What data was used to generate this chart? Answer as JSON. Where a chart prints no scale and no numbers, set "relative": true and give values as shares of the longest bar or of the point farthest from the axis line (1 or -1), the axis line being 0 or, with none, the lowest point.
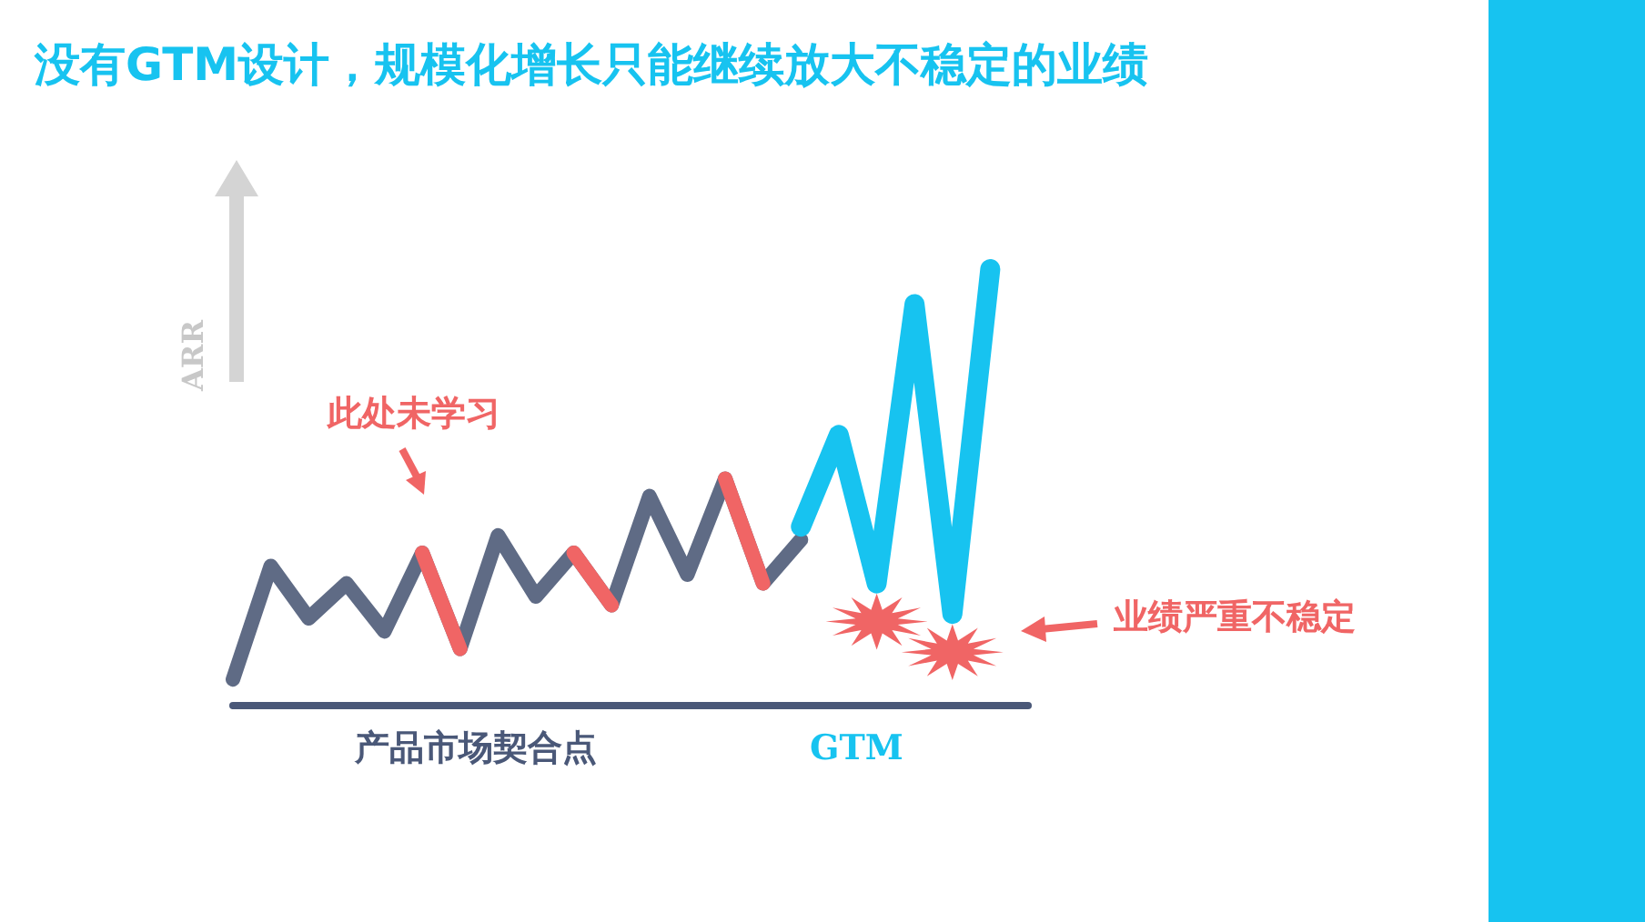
{
  "chart_data": {
    "type": "line",
    "title": "没有GTM设计，规模化增长只能继续放大不稳定的业绩",
    "ylabel": "ARR",
    "relative": true,
    "grid": false,
    "marker": "none",
    "line_style": "solid",
    "categories": [
      null,
      null,
      null,
      null,
      null,
      null,
      null,
      null,
      null,
      null,
      null,
      null,
      null,
      null,
      null,
      null,
      null,
      null,
      null,
      null,
      null,
      null
    ],
    "series": [
      {
        "color": "#5f6b85",
        "values": [
          0.06,
          0.32,
          0.2,
          0.28,
          0.17,
          0.35,
          0.13,
          0.39,
          0.25,
          0.35,
          0.23,
          0.48,
          0.3,
          0.52,
          0.28,
          0.38,
          null,
          null,
          null,
          null,
          null,
          null
        ]
      },
      {
        "color": "#f06565",
        "values": [
          null,
          null,
          null,
          null,
          null,
          0.35,
          0.13,
          null,
          null,
          0.35,
          0.23,
          null,
          null,
          0.52,
          0.28,
          null,
          null,
          null,
          null,
          null,
          null,
          null
        ]
      },
      {
        "color": "#17c3f0",
        "values": [
          null,
          null,
          null,
          null,
          null,
          null,
          null,
          null,
          null,
          null,
          null,
          null,
          null,
          null,
          null,
          0.41,
          0.62,
          0.28,
          0.92,
          0.21,
          1.0,
          null
        ]
      }
    ],
    "annotations": [
      "此处未学习",
      "业绩严重不稳定",
      "产品市场契合点",
      "GTM"
    ]
  }
}
